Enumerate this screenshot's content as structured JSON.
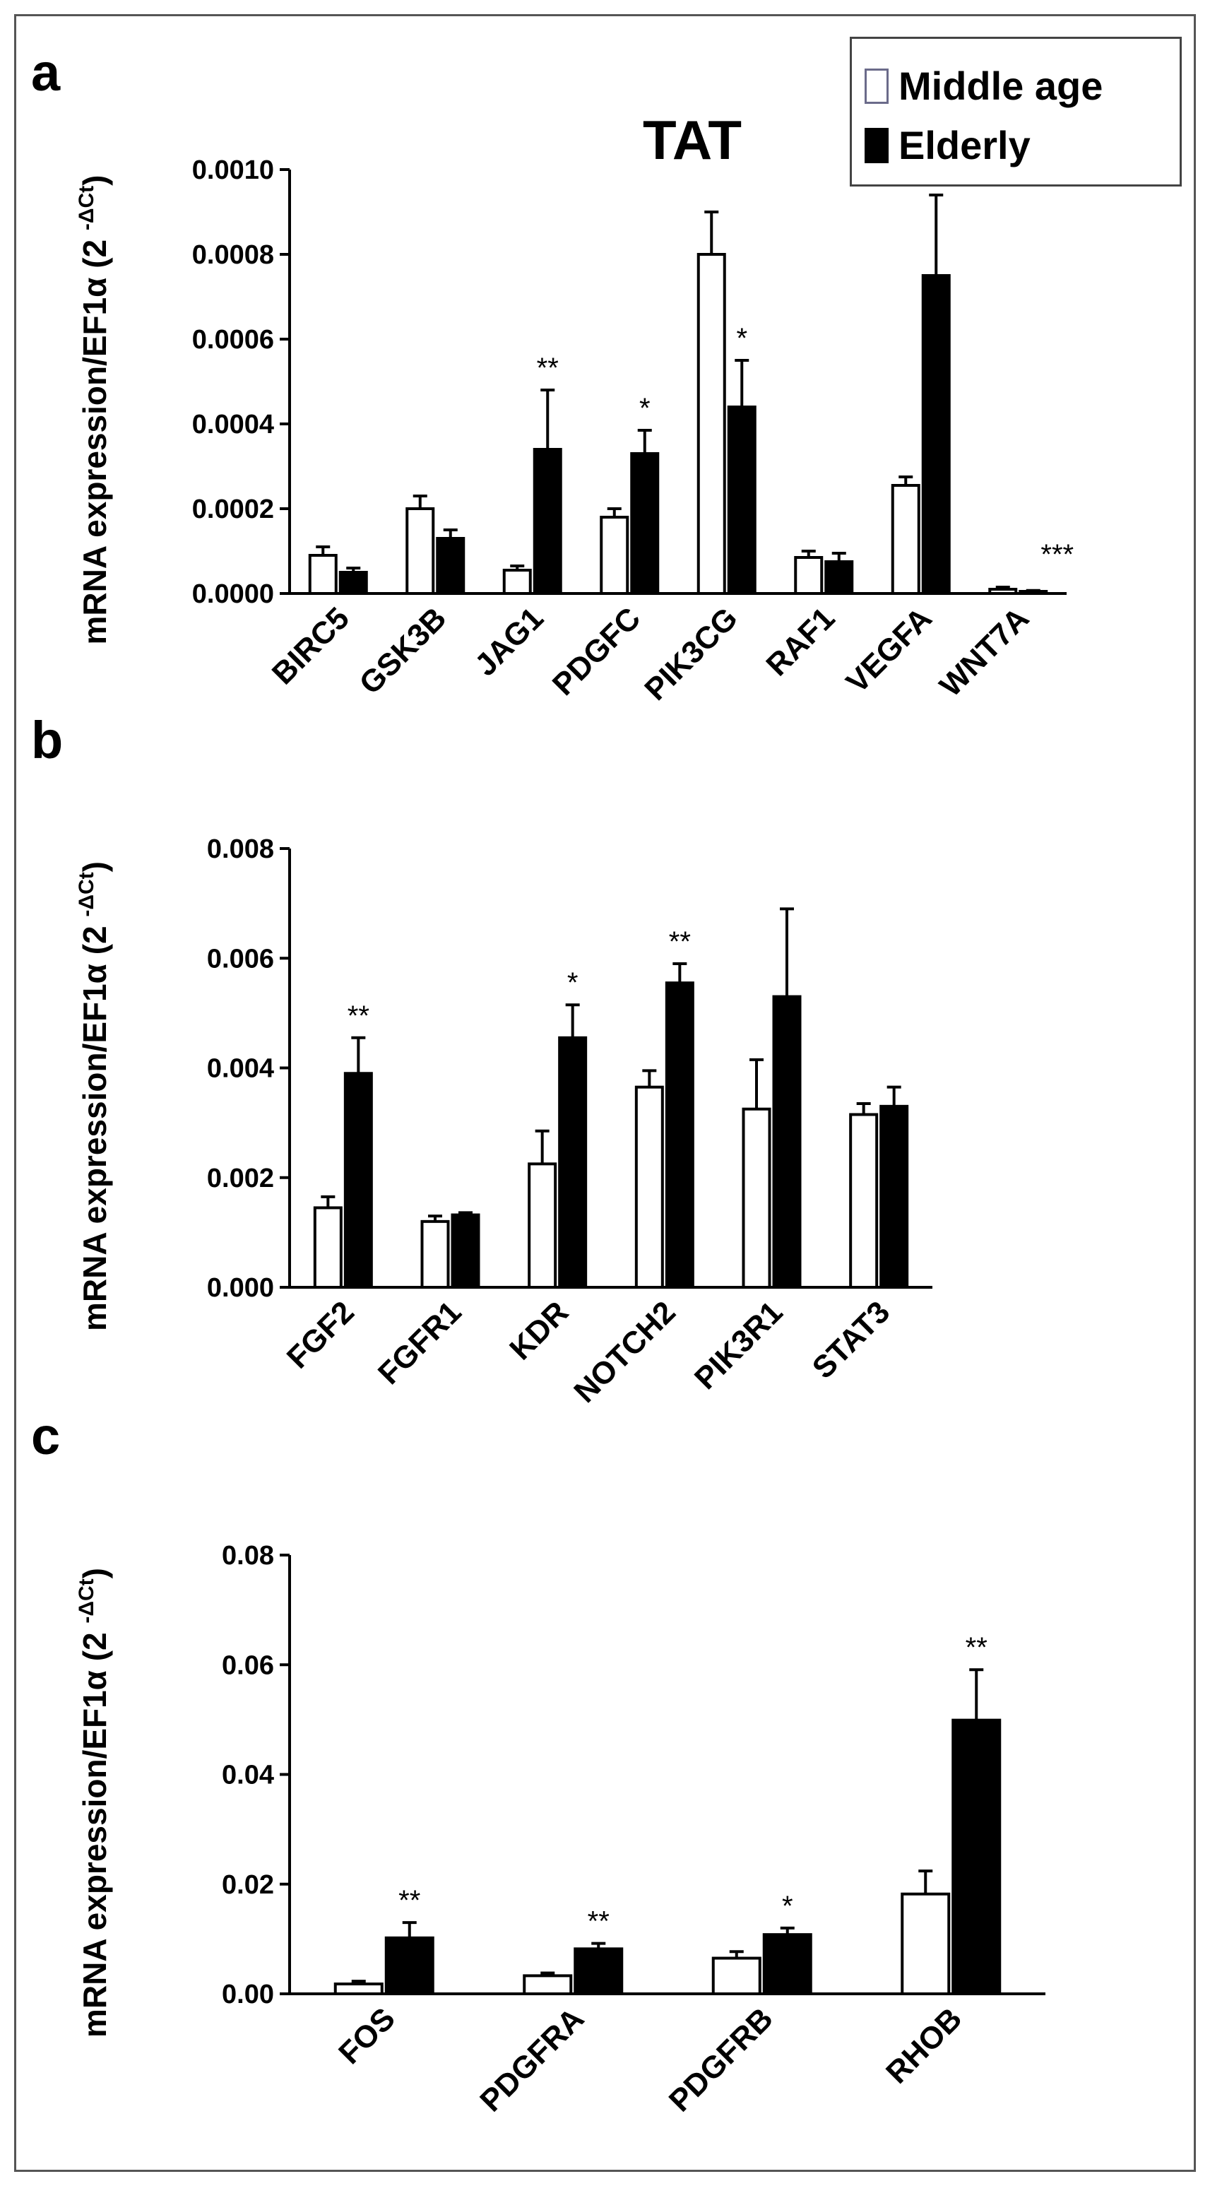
{
  "figure": {
    "legend": [
      {
        "label": "Middle age",
        "fill": "#ffffff"
      },
      {
        "label": "Elderly",
        "fill": "#000000"
      }
    ],
    "ylabel_main": "mRNA expression/EF1α (2",
    "ylabel_sup": "-ΔCt",
    "ylabel_close": ")"
  },
  "chart_data": [
    {
      "type": "bar",
      "panel": "a",
      "title": "TAT",
      "ylim": [
        0,
        0.001
      ],
      "yticks": [
        "0.0000",
        "0.0002",
        "0.0004",
        "0.0006",
        "0.0008",
        "0.0010"
      ],
      "categories": [
        "BIRC5",
        "GSK3B",
        "JAG1",
        "PDGFC",
        "PIK3CG",
        "RAF1",
        "VEGFA",
        "WNT7A"
      ],
      "series": [
        {
          "name": "Middle age",
          "values": [
            9e-05,
            0.0002,
            5.5e-05,
            0.00018,
            0.0008,
            8.5e-05,
            0.000255,
            1e-05
          ],
          "errors": [
            2e-05,
            3e-05,
            1e-05,
            2e-05,
            0.0001,
            1.5e-05,
            2e-05,
            5e-06
          ]
        },
        {
          "name": "Elderly",
          "values": [
            5e-05,
            0.00013,
            0.00034,
            0.00033,
            0.00044,
            7.5e-05,
            0.00075,
            5e-06
          ],
          "errors": [
            1e-05,
            2e-05,
            0.00014,
            5.5e-05,
            0.00011,
            2e-05,
            0.00019,
            2e-06
          ]
        }
      ],
      "significance": [
        "",
        "",
        "**",
        "*",
        "*",
        "",
        "*",
        "***"
      ]
    },
    {
      "type": "bar",
      "panel": "b",
      "title": "",
      "ylim": [
        0,
        0.008
      ],
      "yticks": [
        "0.000",
        "0.002",
        "0.004",
        "0.006",
        "0.008"
      ],
      "categories": [
        "FGF2",
        "FGFR1",
        "KDR",
        "NOTCH2",
        "PIK3R1",
        "STAT3"
      ],
      "series": [
        {
          "name": "Middle age",
          "values": [
            0.00145,
            0.0012,
            0.00225,
            0.00365,
            0.00325,
            0.00315
          ],
          "errors": [
            0.0002,
            0.0001,
            0.0006,
            0.0003,
            0.0009,
            0.0002
          ]
        },
        {
          "name": "Elderly",
          "values": [
            0.0039,
            0.00132,
            0.00455,
            0.00555,
            0.0053,
            0.0033
          ],
          "errors": [
            0.00065,
            4e-05,
            0.0006,
            0.00035,
            0.0016,
            0.00035
          ]
        }
      ],
      "significance": [
        "**",
        "",
        "*",
        "**",
        "",
        ""
      ]
    },
    {
      "type": "bar",
      "panel": "c",
      "title": "",
      "ylim": [
        0,
        0.08
      ],
      "yticks": [
        "0.00",
        "0.02",
        "0.04",
        "0.06",
        "0.08"
      ],
      "categories": [
        "FOS",
        "PDGFRA",
        "PDGFRB",
        "RHOB"
      ],
      "series": [
        {
          "name": "Middle age",
          "values": [
            0.0018,
            0.0033,
            0.0065,
            0.0182
          ],
          "errors": [
            0.0005,
            0.0005,
            0.0012,
            0.0042
          ]
        },
        {
          "name": "Elderly",
          "values": [
            0.0102,
            0.0082,
            0.0108,
            0.0499
          ],
          "errors": [
            0.0028,
            0.001,
            0.0012,
            0.0092
          ]
        }
      ],
      "significance": [
        "**",
        "**",
        "*",
        "**"
      ]
    }
  ]
}
